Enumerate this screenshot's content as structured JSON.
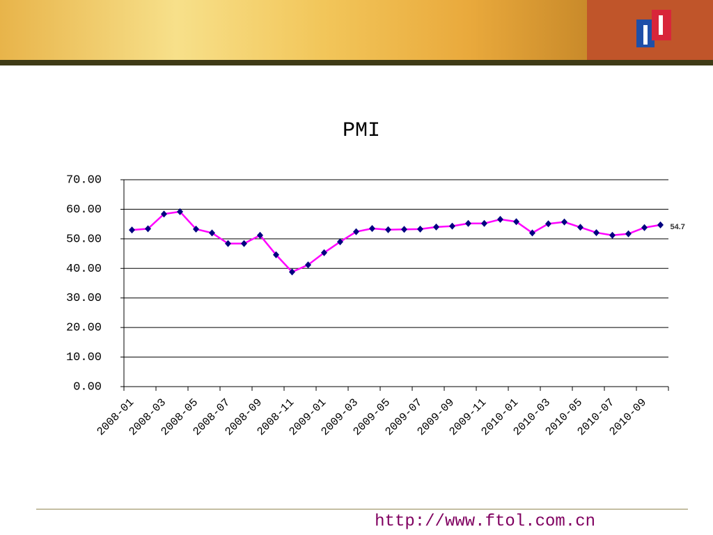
{
  "chart_data": {
    "type": "line",
    "title": "PMI",
    "categories": [
      "2008-01",
      null,
      "2008-03",
      null,
      "2008-05",
      null,
      "2008-07",
      null,
      "2008-09",
      null,
      "2008-11",
      null,
      "2009-01",
      null,
      "2009-03",
      null,
      "2009-05",
      null,
      "2009-07",
      null,
      "2009-09",
      null,
      "2009-11",
      null,
      "2010-01",
      null,
      "2010-03",
      null,
      "2010-05",
      null,
      "2010-07",
      null,
      "2010-09",
      null
    ],
    "series": [
      {
        "name": "PMI",
        "color": "#ff00ff",
        "marker_color": "#000080",
        "values": [
          53.0,
          53.4,
          58.4,
          59.2,
          53.3,
          52.0,
          48.4,
          48.4,
          51.2,
          44.6,
          38.8,
          41.2,
          45.3,
          49.0,
          52.4,
          53.5,
          53.1,
          53.2,
          53.3,
          54.0,
          54.3,
          55.2,
          55.2,
          56.6,
          55.8,
          52.0,
          55.1,
          55.7,
          53.9,
          52.1,
          51.2,
          51.7,
          53.8,
          54.7
        ],
        "value_labels": [
          null,
          null,
          null,
          null,
          null,
          null,
          null,
          null,
          null,
          null,
          null,
          null,
          null,
          null,
          null,
          null,
          null,
          null,
          null,
          null,
          null,
          null,
          null,
          null,
          null,
          null,
          null,
          null,
          null,
          null,
          null,
          null,
          null,
          "54.7"
        ]
      }
    ],
    "ylim": [
      0,
      70
    ],
    "yticks": [
      {
        "value": 0,
        "label": "0.00"
      },
      {
        "value": 10,
        "label": "10.00"
      },
      {
        "value": 20,
        "label": "20.00"
      },
      {
        "value": 30,
        "label": "30.00"
      },
      {
        "value": 40,
        "label": "40.00"
      },
      {
        "value": 50,
        "label": "50.00"
      },
      {
        "value": 60,
        "label": "60.00"
      },
      {
        "value": 70,
        "label": "70.00"
      }
    ],
    "grid": true
  },
  "footer": "http://www.ftol.com.cn"
}
